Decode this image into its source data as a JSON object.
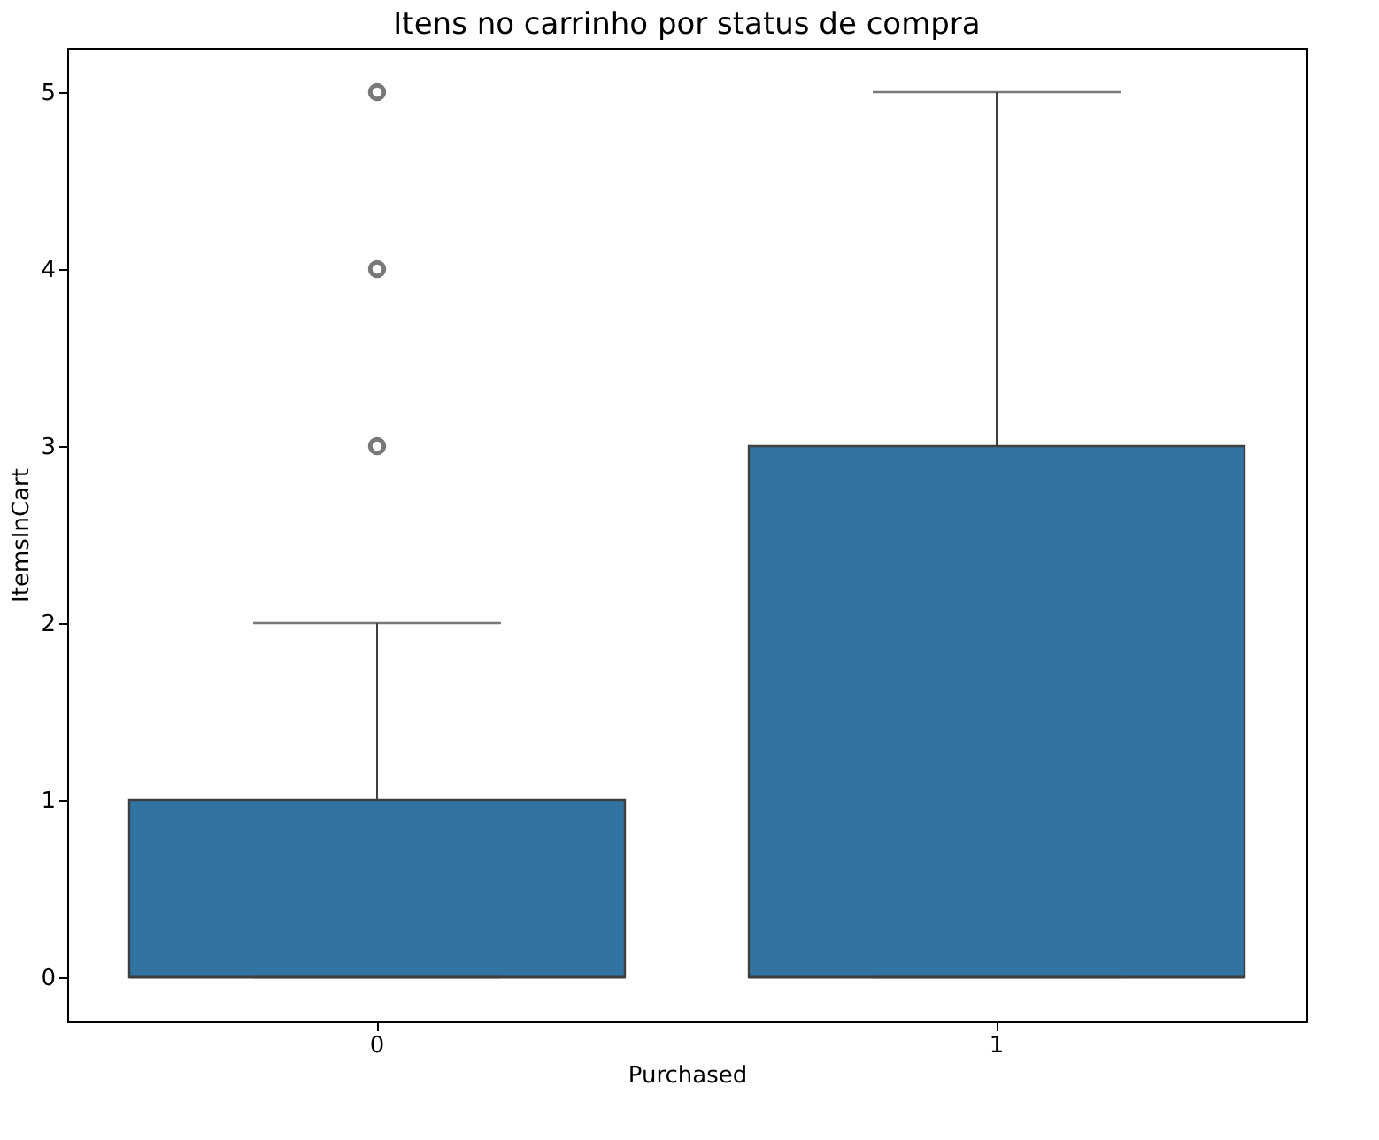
{
  "chart_data": {
    "type": "box",
    "title": "Itens no carrinho por status de compra",
    "xlabel": "Purchased",
    "ylabel": "ItemsInCart",
    "categories": [
      "0",
      "1"
    ],
    "color": "#3274a1",
    "boxes": [
      {
        "low": 0,
        "q1": 0,
        "median": 0,
        "q3": 1,
        "high": 2,
        "outliers": [
          3,
          4,
          5
        ]
      },
      {
        "low": 0,
        "q1": 0,
        "median": 0,
        "q3": 3,
        "high": 5
      }
    ],
    "ylim": [
      -0.25,
      5.25
    ],
    "yticks": [
      0,
      1,
      2,
      3,
      4,
      5
    ],
    "grid": false
  }
}
